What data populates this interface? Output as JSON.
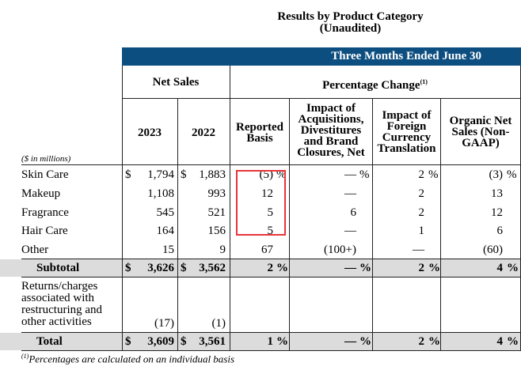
{
  "title": {
    "line1": "Results by Product Category",
    "line2": "(Unaudited)"
  },
  "banner": "Three Months Ended June 30",
  "headers": {
    "net_sales": "Net Sales",
    "pct_change": "Percentage Change",
    "pct_change_note": "(1)",
    "y2023": "2023",
    "y2022": "2022",
    "reported": "Reported Basis",
    "impact_acq": "Impact of Acquisitions, Divestitures and Brand Closures, Net",
    "impact_fx": "Impact of Foreign Currency Translation",
    "organic": "Organic Net Sales (Non-GAAP)"
  },
  "unit_note": "($ in millions)",
  "rows": [
    {
      "label": "Skin Care",
      "dollar23": "$",
      "y2023": "1,794",
      "dollar22": "$",
      "y2022": "1,883",
      "reported": "(5)",
      "rep_pct": "%",
      "acq": "—",
      "acq_pct": "%",
      "fx": "2",
      "fx_pct": "%",
      "organic": "(3)",
      "org_pct": "%"
    },
    {
      "label": "Makeup",
      "dollar23": "",
      "y2023": "1,108",
      "dollar22": "",
      "y2022": "993",
      "reported": "12",
      "rep_pct": "",
      "acq": "—",
      "acq_pct": "",
      "fx": "2",
      "fx_pct": "",
      "organic": "13",
      "org_pct": ""
    },
    {
      "label": "Fragrance",
      "dollar23": "",
      "y2023": "545",
      "dollar22": "",
      "y2022": "521",
      "reported": "5",
      "rep_pct": "",
      "acq": "6",
      "acq_pct": "",
      "fx": "2",
      "fx_pct": "",
      "organic": "12",
      "org_pct": ""
    },
    {
      "label": "Hair Care",
      "dollar23": "",
      "y2023": "164",
      "dollar22": "",
      "y2022": "156",
      "reported": "5",
      "rep_pct": "",
      "acq": "—",
      "acq_pct": "",
      "fx": "1",
      "fx_pct": "",
      "organic": "6",
      "org_pct": ""
    },
    {
      "label": "Other",
      "dollar23": "",
      "y2023": "15",
      "dollar22": "",
      "y2022": "9",
      "reported": "67",
      "rep_pct": "",
      "acq": "(100+)",
      "acq_pct": "",
      "fx": "—",
      "fx_pct": "",
      "organic": "(60)",
      "org_pct": ""
    }
  ],
  "subtotal": {
    "label": "Subtotal",
    "dollar23": "$",
    "y2023": "3,626",
    "dollar22": "$",
    "y2022": "3,562",
    "reported": "2",
    "acq": "—",
    "fx": "2",
    "organic": "4",
    "pct": "%"
  },
  "returns": {
    "label": "Returns/charges associated with restructuring and other activities",
    "y2023": "(17)",
    "y2022": "(1)"
  },
  "total": {
    "label": "Total",
    "dollar23": "$",
    "y2023": "3,609",
    "dollar22": "$",
    "y2022": "3,561",
    "reported": "1",
    "acq": "—",
    "fx": "2",
    "organic": "4",
    "pct": "%"
  },
  "footnote": {
    "mark": "(1)",
    "text": "Percentages are calculated on an individual basis"
  }
}
